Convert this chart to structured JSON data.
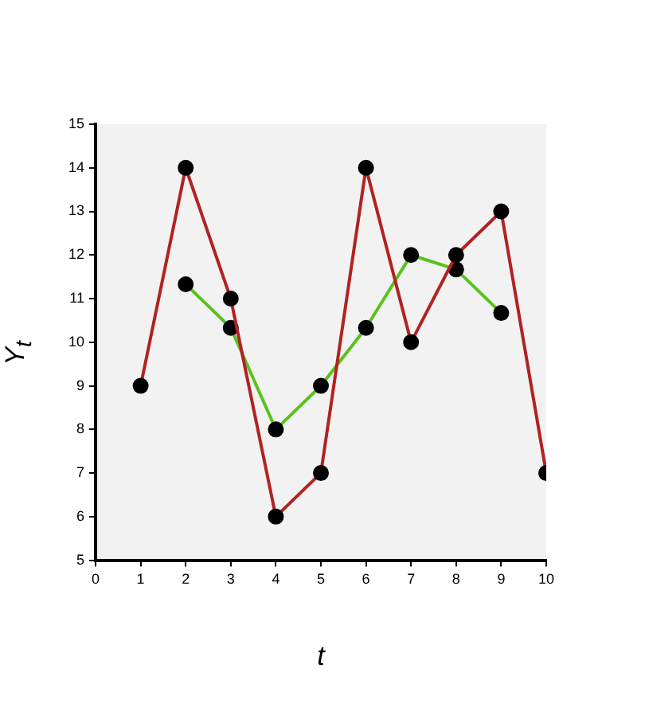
{
  "chart_data": {
    "type": "line",
    "xlabel": "t",
    "ylabel": "Y$_{t}$",
    "xlim": [
      0,
      10
    ],
    "xticks": [
      0,
      1,
      2,
      3,
      4,
      5,
      6,
      7,
      8,
      9,
      10
    ],
    "ylim": [
      5,
      15
    ],
    "yticks": [
      5,
      6,
      7,
      8,
      9,
      10,
      11,
      12,
      13,
      14,
      15
    ],
    "grid": false,
    "legend": false,
    "marker": "circle",
    "series": [
      {
        "color": "#b22222",
        "x": [
          1,
          2,
          3,
          4,
          5,
          6,
          7,
          8,
          9,
          10
        ],
        "values": [
          9,
          14,
          11,
          6,
          7,
          14,
          10,
          12,
          13,
          7
        ]
      },
      {
        "color": "#5ac21d",
        "x": [
          2,
          3,
          4,
          5,
          6,
          7,
          8,
          9
        ],
        "values": [
          11.33,
          10.33,
          8,
          9,
          10.33,
          12,
          11.67,
          10.67
        ]
      }
    ]
  }
}
